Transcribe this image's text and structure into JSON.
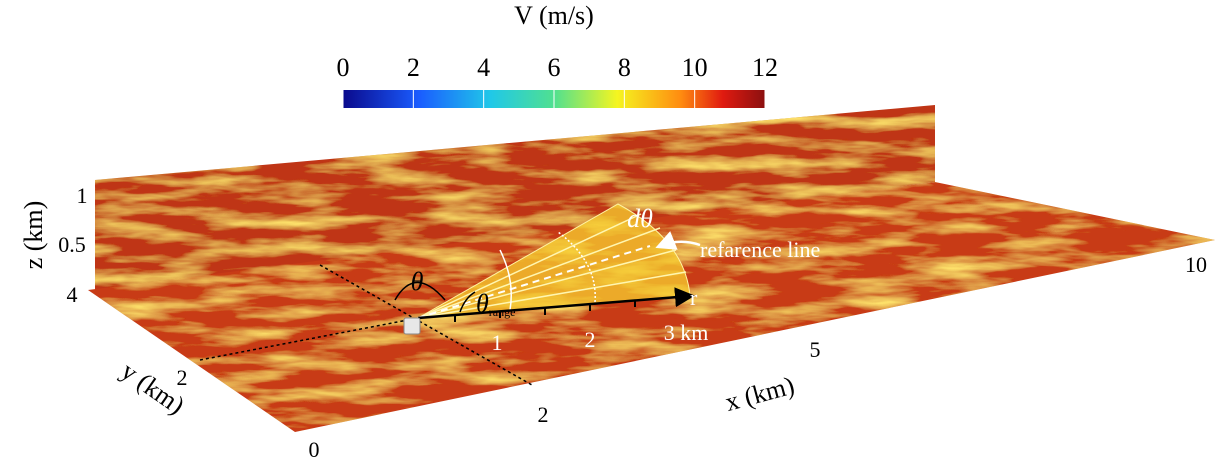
{
  "colorbar": {
    "title": "V (m/s)",
    "min": 0,
    "max": 12,
    "ticks": [
      0,
      2,
      4,
      6,
      8,
      10,
      12
    ]
  },
  "axes": {
    "z": {
      "label": "z (km)",
      "ticks": [
        "1",
        "0.5",
        "4"
      ]
    },
    "y": {
      "label": "y (km)",
      "ticks": [
        "2",
        "0"
      ]
    },
    "x": {
      "label": "x (km)",
      "ticks": [
        "2",
        "5",
        "10"
      ]
    }
  },
  "annotations": {
    "theta": "θ",
    "theta_range": {
      "symbol": "θ",
      "subscript": "range"
    },
    "d_theta": "dθ",
    "reference_line": "refarence line",
    "r_axis": {
      "label": "r",
      "ticks": [
        "1",
        "2",
        "3 km"
      ]
    }
  }
}
